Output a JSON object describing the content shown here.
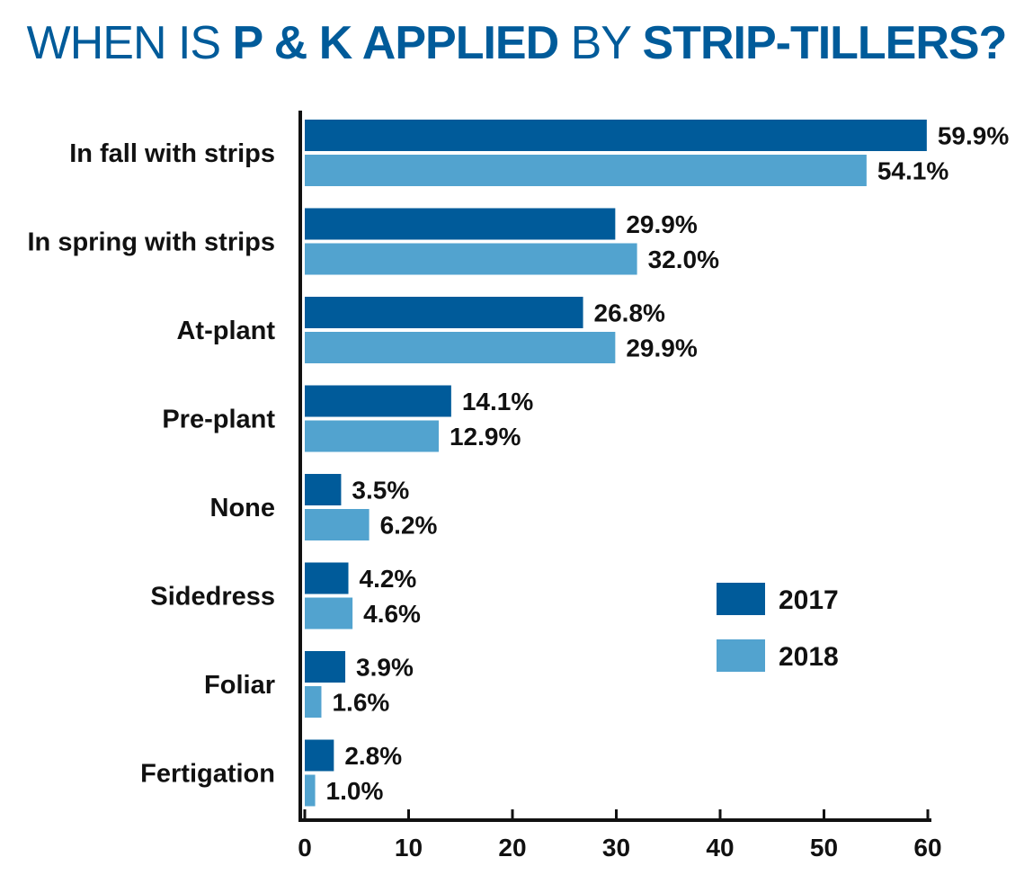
{
  "chart_data": {
    "type": "bar",
    "orientation": "horizontal",
    "title_parts": [
      {
        "text": "WHEN IS ",
        "bold": false
      },
      {
        "text": "P & K APPLIED",
        "bold": true
      },
      {
        "text": " BY ",
        "bold": false
      },
      {
        "text": "STRIP-TILLERS?",
        "bold": true
      }
    ],
    "categories": [
      "In fall with strips",
      "In spring with strips",
      "At-plant",
      "Pre-plant",
      "None",
      "Sidedress",
      "Foliar",
      "Fertigation"
    ],
    "series": [
      {
        "name": "2017",
        "color": "#005b9a",
        "values": [
          59.9,
          29.9,
          26.8,
          14.1,
          3.5,
          4.2,
          3.9,
          2.8
        ],
        "labels": [
          "59.9%",
          "29.9%",
          "26.8%",
          "14.1%",
          "3.5%",
          "4.2%",
          "3.9%",
          "2.8%"
        ]
      },
      {
        "name": "2018",
        "color": "#52a3cf",
        "values": [
          54.1,
          32.0,
          29.9,
          12.9,
          6.2,
          4.6,
          1.6,
          1.0
        ],
        "labels": [
          "54.1%",
          "32.0%",
          "29.9%",
          "12.9%",
          "6.2%",
          "4.6%",
          "1.6%",
          "1.0%"
        ]
      }
    ],
    "xlim": [
      0,
      60
    ],
    "xticks": [
      0,
      10,
      20,
      30,
      40,
      50,
      60
    ],
    "grid": false,
    "legend_position": "right"
  }
}
